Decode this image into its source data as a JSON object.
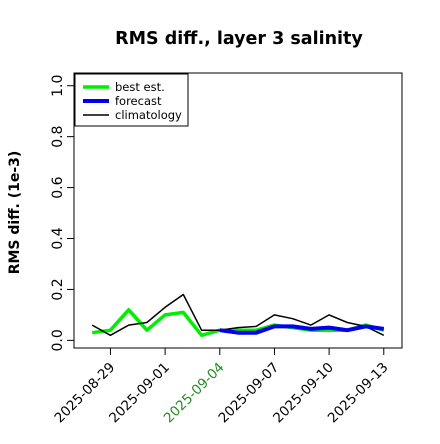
{
  "chart_data": {
    "type": "line",
    "title": "RMS diff., layer 3 salinity",
    "ylabel": "RMS diff. (1e-3)",
    "xlabel": "",
    "ylim": [
      -0.03,
      1.05
    ],
    "yticks": [
      0.0,
      0.2,
      0.4,
      0.6,
      0.8,
      1.0
    ],
    "ytick_labels": [
      "0.0",
      "0.2",
      "0.4",
      "0.6",
      "0.8",
      "1.0"
    ],
    "x": [
      "2025-08-28",
      "2025-08-29",
      "2025-08-30",
      "2025-08-31",
      "2025-09-01",
      "2025-09-02",
      "2025-09-03",
      "2025-09-04",
      "2025-09-05",
      "2025-09-06",
      "2025-09-07",
      "2025-09-08",
      "2025-09-09",
      "2025-09-10",
      "2025-09-11",
      "2025-09-12",
      "2025-09-13"
    ],
    "xlim": [
      "2025-08-27",
      "2025-09-14"
    ],
    "xticks": [
      "2025-08-29",
      "2025-09-01",
      "2025-09-04",
      "2025-09-07",
      "2025-09-10",
      "2025-09-13"
    ],
    "xtick_highlight": "2025-09-04",
    "xtick_highlight_color": "#228b22",
    "series": [
      {
        "name": "best est.",
        "color": "#00ee00",
        "values": [
          0.03,
          0.04,
          0.12,
          0.04,
          0.1,
          0.11,
          0.02,
          0.04,
          0.04,
          0.04,
          0.06,
          0.05,
          0.04,
          0.04,
          0.04,
          0.06,
          0.04
        ]
      },
      {
        "name": "forecast",
        "color": "#0000ee",
        "values": [
          null,
          null,
          null,
          null,
          null,
          null,
          null,
          0.04,
          0.03,
          0.03,
          0.055,
          0.055,
          0.045,
          0.05,
          0.04,
          0.055,
          0.045
        ]
      },
      {
        "name": "climatology",
        "color": "#000000",
        "values": [
          0.06,
          0.02,
          0.06,
          0.07,
          0.13,
          0.18,
          0.04,
          0.04,
          0.05,
          0.055,
          0.1,
          0.085,
          0.06,
          0.1,
          0.07,
          0.055,
          0.02
        ]
      }
    ],
    "legend": {
      "position": "top-left",
      "entries": [
        "best est.",
        "forecast",
        "climatology"
      ]
    },
    "grid": false
  }
}
